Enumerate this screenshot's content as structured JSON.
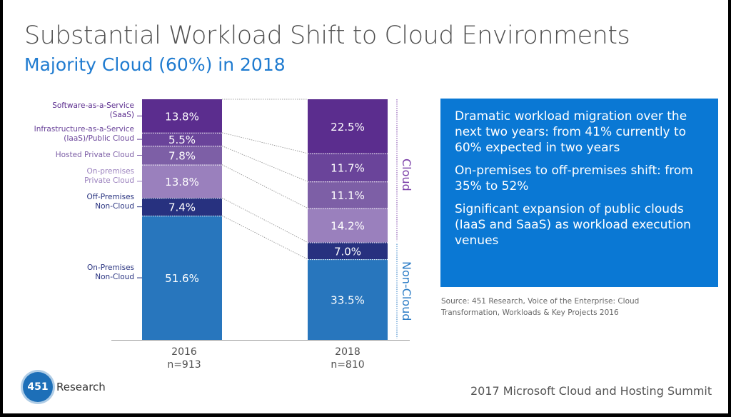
{
  "title": "Substantial Workload Shift to Cloud Environments",
  "subtitle": "Majority Cloud (60%) in 2018",
  "chart_data": {
    "type": "bar",
    "stacked": true,
    "categories": [
      "2016",
      "2018"
    ],
    "category_subtitles": [
      "n=913",
      "n=810"
    ],
    "ylim": [
      0,
      100
    ],
    "grid": false,
    "series": [
      {
        "name": "On-Premises Non-Cloud",
        "values": [
          51.6,
          33.5
        ],
        "labels": [
          "51.6%",
          "33.5%"
        ],
        "color": "#2876bd",
        "label_color": "#27317f"
      },
      {
        "name": "Off-Premises Non-Cloud",
        "values": [
          7.4,
          7.0
        ],
        "labels": [
          "7.4%",
          "7.0%"
        ],
        "color": "#27317f",
        "label_color": "#27317f"
      },
      {
        "name": "On-premises Private Cloud",
        "values": [
          13.8,
          14.2
        ],
        "labels": [
          "13.8%",
          "14.2%"
        ],
        "color": "#9a80bd",
        "label_color": "#9a80bd"
      },
      {
        "name": "Hosted Private Cloud",
        "values": [
          7.8,
          11.1
        ],
        "labels": [
          "7.8%",
          "11.1%"
        ],
        "color": "#7d5fa6",
        "label_color": "#7d5fa6"
      },
      {
        "name": "Infrastructure-as-a-Service (IaaS)/Public Cloud",
        "values": [
          5.5,
          11.7
        ],
        "labels": [
          "5.5%",
          "11.7%"
        ],
        "color": "#6a449a",
        "label_color": "#6a449a"
      },
      {
        "name": "Software-as-a-Service (SaaS)",
        "values": [
          13.8,
          22.5
        ],
        "labels": [
          "13.8%",
          "22.5%"
        ],
        "color": "#5b2d8e",
        "label_color": "#5b2d8e"
      }
    ],
    "series_label_lines": [
      [
        "On-Premises",
        "Non-Cloud"
      ],
      [
        "Off-Premises",
        "Non-Cloud"
      ],
      [
        "On-premises",
        "Private Cloud"
      ],
      [
        "Hosted Private Cloud"
      ],
      [
        "Infrastructure-as-a-Service",
        "(IaaS)/Public Cloud"
      ],
      [
        "Software-as-a-Service",
        "(SaaS)"
      ]
    ],
    "groups": [
      {
        "name": "Cloud",
        "color": "#7b3fa8"
      },
      {
        "name": "Non-Cloud",
        "color": "#2b7cc6"
      }
    ]
  },
  "box": {
    "color": "#0a78d4",
    "points": [
      "Dramatic workload migration over the next two years: from 41% currently to 60% expected in two years",
      "On-premises to off-premises shift: from 35% to 52%",
      "Significant expansion of public clouds (IaaS and SaaS) as workload execution venues"
    ]
  },
  "source": "Source: 451 Research, Voice of the Enterprise: Cloud Transformation, Workloads & Key Projects 2016",
  "footer": "2017 Microsoft Cloud and Hosting Summit",
  "logo": {
    "number": "451",
    "name": "Research"
  }
}
